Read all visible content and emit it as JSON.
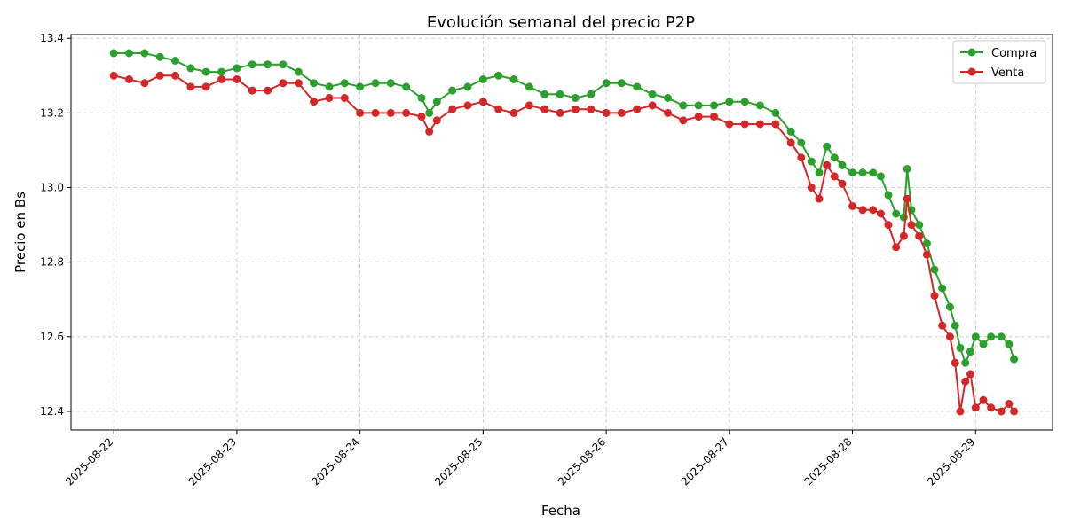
{
  "chart_data": {
    "type": "line",
    "title": "Evolución semanal del precio P2P",
    "xlabel": "Fecha",
    "ylabel": "Precio en Bs",
    "x_ticks": [
      "2025-08-22",
      "2025-08-23",
      "2025-08-24",
      "2025-08-25",
      "2025-08-26",
      "2025-08-27",
      "2025-08-28",
      "2025-08-29"
    ],
    "y_ticks": [
      12.4,
      12.6,
      12.8,
      13.0,
      13.2,
      13.4
    ],
    "ylim": [
      12.35,
      13.41
    ],
    "xlim": [
      "2025-08-21 15:40",
      "2025-08-29 15:00"
    ],
    "grid": true,
    "legend_position": "top-right",
    "series": [
      {
        "name": "Compra",
        "color": "#2ca02c",
        "points": [
          [
            "2025-08-22 00:00",
            13.36
          ],
          [
            "2025-08-22 03:00",
            13.36
          ],
          [
            "2025-08-22 06:00",
            13.36
          ],
          [
            "2025-08-22 09:00",
            13.35
          ],
          [
            "2025-08-22 12:00",
            13.34
          ],
          [
            "2025-08-22 15:00",
            13.32
          ],
          [
            "2025-08-22 18:00",
            13.31
          ],
          [
            "2025-08-22 21:00",
            13.31
          ],
          [
            "2025-08-23 00:00",
            13.32
          ],
          [
            "2025-08-23 03:00",
            13.33
          ],
          [
            "2025-08-23 06:00",
            13.33
          ],
          [
            "2025-08-23 09:00",
            13.33
          ],
          [
            "2025-08-23 12:00",
            13.31
          ],
          [
            "2025-08-23 15:00",
            13.28
          ],
          [
            "2025-08-23 18:00",
            13.27
          ],
          [
            "2025-08-23 21:00",
            13.28
          ],
          [
            "2025-08-24 00:00",
            13.27
          ],
          [
            "2025-08-24 03:00",
            13.28
          ],
          [
            "2025-08-24 06:00",
            13.28
          ],
          [
            "2025-08-24 09:00",
            13.27
          ],
          [
            "2025-08-24 12:00",
            13.24
          ],
          [
            "2025-08-24 13:30",
            13.2
          ],
          [
            "2025-08-24 15:00",
            13.23
          ],
          [
            "2025-08-24 18:00",
            13.26
          ],
          [
            "2025-08-24 21:00",
            13.27
          ],
          [
            "2025-08-25 00:00",
            13.29
          ],
          [
            "2025-08-25 03:00",
            13.3
          ],
          [
            "2025-08-25 06:00",
            13.29
          ],
          [
            "2025-08-25 09:00",
            13.27
          ],
          [
            "2025-08-25 12:00",
            13.25
          ],
          [
            "2025-08-25 15:00",
            13.25
          ],
          [
            "2025-08-25 18:00",
            13.24
          ],
          [
            "2025-08-25 21:00",
            13.25
          ],
          [
            "2025-08-26 00:00",
            13.28
          ],
          [
            "2025-08-26 03:00",
            13.28
          ],
          [
            "2025-08-26 06:00",
            13.27
          ],
          [
            "2025-08-26 09:00",
            13.25
          ],
          [
            "2025-08-26 12:00",
            13.24
          ],
          [
            "2025-08-26 15:00",
            13.22
          ],
          [
            "2025-08-26 18:00",
            13.22
          ],
          [
            "2025-08-26 21:00",
            13.22
          ],
          [
            "2025-08-27 00:00",
            13.23
          ],
          [
            "2025-08-27 03:00",
            13.23
          ],
          [
            "2025-08-27 06:00",
            13.22
          ],
          [
            "2025-08-27 09:00",
            13.2
          ],
          [
            "2025-08-27 12:00",
            13.15
          ],
          [
            "2025-08-27 14:00",
            13.12
          ],
          [
            "2025-08-27 16:00",
            13.07
          ],
          [
            "2025-08-27 17:30",
            13.04
          ],
          [
            "2025-08-27 19:00",
            13.11
          ],
          [
            "2025-08-27 20:30",
            13.08
          ],
          [
            "2025-08-27 22:00",
            13.06
          ],
          [
            "2025-08-28 00:00",
            13.04
          ],
          [
            "2025-08-28 02:00",
            13.04
          ],
          [
            "2025-08-28 04:00",
            13.04
          ],
          [
            "2025-08-28 05:30",
            13.03
          ],
          [
            "2025-08-28 07:00",
            12.98
          ],
          [
            "2025-08-28 08:30",
            12.93
          ],
          [
            "2025-08-28 10:00",
            12.92
          ],
          [
            "2025-08-28 10:40",
            13.05
          ],
          [
            "2025-08-28 11:30",
            12.94
          ],
          [
            "2025-08-28 13:00",
            12.9
          ],
          [
            "2025-08-28 14:30",
            12.85
          ],
          [
            "2025-08-28 16:00",
            12.78
          ],
          [
            "2025-08-28 17:30",
            12.73
          ],
          [
            "2025-08-28 19:00",
            12.68
          ],
          [
            "2025-08-28 20:00",
            12.63
          ],
          [
            "2025-08-28 21:00",
            12.57
          ],
          [
            "2025-08-28 22:00",
            12.53
          ],
          [
            "2025-08-28 23:00",
            12.56
          ],
          [
            "2025-08-29 00:00",
            12.6
          ],
          [
            "2025-08-29 01:30",
            12.58
          ],
          [
            "2025-08-29 03:00",
            12.6
          ],
          [
            "2025-08-29 05:00",
            12.6
          ],
          [
            "2025-08-29 06:30",
            12.58
          ],
          [
            "2025-08-29 07:30",
            12.54
          ]
        ]
      },
      {
        "name": "Venta",
        "color": "#d62728",
        "points": [
          [
            "2025-08-22 00:00",
            13.3
          ],
          [
            "2025-08-22 03:00",
            13.29
          ],
          [
            "2025-08-22 06:00",
            13.28
          ],
          [
            "2025-08-22 09:00",
            13.3
          ],
          [
            "2025-08-22 12:00",
            13.3
          ],
          [
            "2025-08-22 15:00",
            13.27
          ],
          [
            "2025-08-22 18:00",
            13.27
          ],
          [
            "2025-08-22 21:00",
            13.29
          ],
          [
            "2025-08-23 00:00",
            13.29
          ],
          [
            "2025-08-23 03:00",
            13.26
          ],
          [
            "2025-08-23 06:00",
            13.26
          ],
          [
            "2025-08-23 09:00",
            13.28
          ],
          [
            "2025-08-23 12:00",
            13.28
          ],
          [
            "2025-08-23 15:00",
            13.23
          ],
          [
            "2025-08-23 18:00",
            13.24
          ],
          [
            "2025-08-23 21:00",
            13.24
          ],
          [
            "2025-08-24 00:00",
            13.2
          ],
          [
            "2025-08-24 03:00",
            13.2
          ],
          [
            "2025-08-24 06:00",
            13.2
          ],
          [
            "2025-08-24 09:00",
            13.2
          ],
          [
            "2025-08-24 12:00",
            13.19
          ],
          [
            "2025-08-24 13:30",
            13.15
          ],
          [
            "2025-08-24 15:00",
            13.18
          ],
          [
            "2025-08-24 18:00",
            13.21
          ],
          [
            "2025-08-24 21:00",
            13.22
          ],
          [
            "2025-08-25 00:00",
            13.23
          ],
          [
            "2025-08-25 03:00",
            13.21
          ],
          [
            "2025-08-25 06:00",
            13.2
          ],
          [
            "2025-08-25 09:00",
            13.22
          ],
          [
            "2025-08-25 12:00",
            13.21
          ],
          [
            "2025-08-25 15:00",
            13.2
          ],
          [
            "2025-08-25 18:00",
            13.21
          ],
          [
            "2025-08-25 21:00",
            13.21
          ],
          [
            "2025-08-26 00:00",
            13.2
          ],
          [
            "2025-08-26 03:00",
            13.2
          ],
          [
            "2025-08-26 06:00",
            13.21
          ],
          [
            "2025-08-26 09:00",
            13.22
          ],
          [
            "2025-08-26 12:00",
            13.2
          ],
          [
            "2025-08-26 15:00",
            13.18
          ],
          [
            "2025-08-26 18:00",
            13.19
          ],
          [
            "2025-08-26 21:00",
            13.19
          ],
          [
            "2025-08-27 00:00",
            13.17
          ],
          [
            "2025-08-27 03:00",
            13.17
          ],
          [
            "2025-08-27 06:00",
            13.17
          ],
          [
            "2025-08-27 09:00",
            13.17
          ],
          [
            "2025-08-27 12:00",
            13.12
          ],
          [
            "2025-08-27 14:00",
            13.08
          ],
          [
            "2025-08-27 16:00",
            13.0
          ],
          [
            "2025-08-27 17:30",
            12.97
          ],
          [
            "2025-08-27 19:00",
            13.06
          ],
          [
            "2025-08-27 20:30",
            13.03
          ],
          [
            "2025-08-27 22:00",
            13.01
          ],
          [
            "2025-08-28 00:00",
            12.95
          ],
          [
            "2025-08-28 02:00",
            12.94
          ],
          [
            "2025-08-28 04:00",
            12.94
          ],
          [
            "2025-08-28 05:30",
            12.93
          ],
          [
            "2025-08-28 07:00",
            12.9
          ],
          [
            "2025-08-28 08:30",
            12.84
          ],
          [
            "2025-08-28 10:00",
            12.87
          ],
          [
            "2025-08-28 10:40",
            12.97
          ],
          [
            "2025-08-28 11:30",
            12.9
          ],
          [
            "2025-08-28 13:00",
            12.87
          ],
          [
            "2025-08-28 14:30",
            12.82
          ],
          [
            "2025-08-28 16:00",
            12.71
          ],
          [
            "2025-08-28 17:30",
            12.63
          ],
          [
            "2025-08-28 19:00",
            12.6
          ],
          [
            "2025-08-28 20:00",
            12.53
          ],
          [
            "2025-08-28 21:00",
            12.4
          ],
          [
            "2025-08-28 22:00",
            12.48
          ],
          [
            "2025-08-28 23:00",
            12.5
          ],
          [
            "2025-08-29 00:00",
            12.41
          ],
          [
            "2025-08-29 01:30",
            12.43
          ],
          [
            "2025-08-29 03:00",
            12.41
          ],
          [
            "2025-08-29 05:00",
            12.4
          ],
          [
            "2025-08-29 06:30",
            12.42
          ],
          [
            "2025-08-29 07:30",
            12.4
          ]
        ]
      }
    ]
  }
}
